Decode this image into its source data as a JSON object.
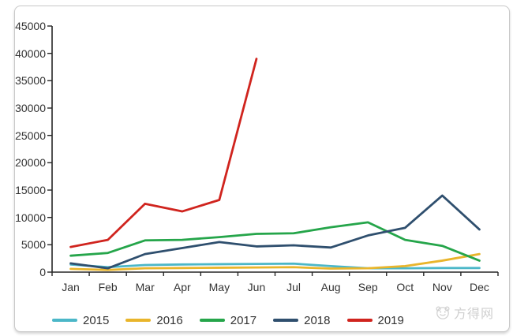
{
  "watermark": {
    "text": "方得网"
  },
  "chart_data": {
    "type": "line",
    "title": "",
    "xlabel": "",
    "ylabel": "",
    "categories": [
      "Jan",
      "Feb",
      "Mar",
      "Apr",
      "May",
      "Jun",
      "Jul",
      "Aug",
      "Sep",
      "Oct",
      "Nov",
      "Dec"
    ],
    "yticks": [
      0,
      5000,
      10000,
      15000,
      20000,
      25000,
      30000,
      35000,
      40000,
      45000
    ],
    "ylim": [
      0,
      45000
    ],
    "grid": false,
    "legend_position": "bottom",
    "axis_color": "#262626",
    "series": [
      {
        "name": "2015",
        "color": "#4BB7C8",
        "values": [
          1400,
          900,
          1300,
          1400,
          1450,
          1500,
          1550,
          1100,
          700,
          700,
          750,
          750
        ]
      },
      {
        "name": "2016",
        "color": "#E9B52B",
        "values": [
          600,
          400,
          700,
          750,
          800,
          850,
          900,
          650,
          700,
          1100,
          2100,
          3300
        ]
      },
      {
        "name": "2017",
        "color": "#25A54A",
        "values": [
          3000,
          3500,
          5800,
          5900,
          6400,
          7000,
          7100,
          8200,
          9100,
          5900,
          4800,
          2100
        ]
      },
      {
        "name": "2018",
        "color": "#2F4F6E",
        "values": [
          1600,
          700,
          3300,
          4400,
          5500,
          4700,
          4900,
          4500,
          6700,
          8100,
          14000,
          7800
        ]
      },
      {
        "name": "2019",
        "color": "#D0241E",
        "values": [
          4600,
          5900,
          12500,
          11100,
          13200,
          39000,
          null,
          null,
          null,
          null,
          null,
          null
        ]
      }
    ]
  }
}
